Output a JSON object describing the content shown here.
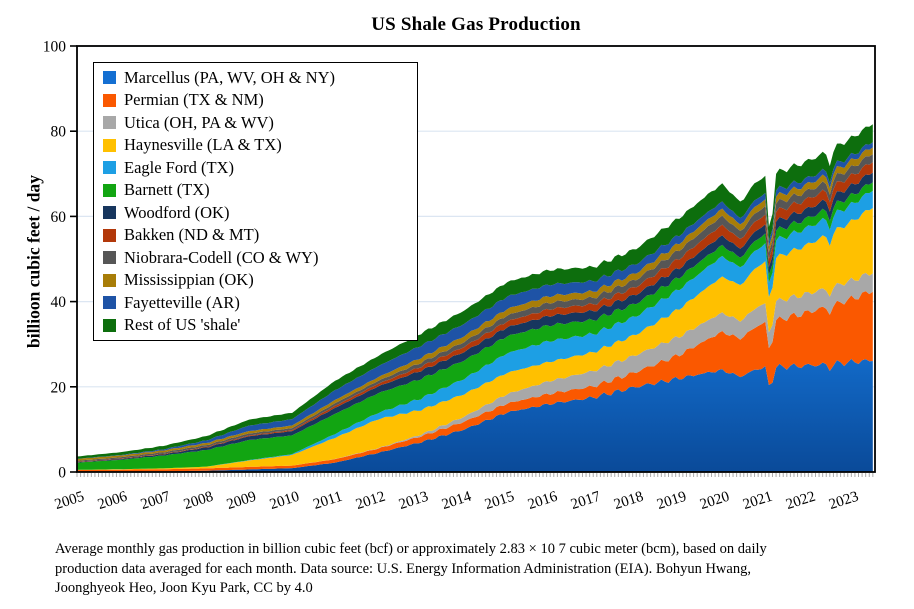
{
  "title": "US Shale Gas Production",
  "y_axis_title": "billioon cubic feet / day",
  "caption_lines": [
    "Average monthly gas production in billion cubic feet (bcf) or approximately 2.83 × 10 7 cubic meter (bcm), based on daily",
    "production data averaged for each month. Data source: U.S. Energy Information Administration (EIA). Bohyun Hwang,",
    "Joonghyeok Heo, Joon Kyu Park, CC by 4.0"
  ],
  "colors": {
    "grid": "#DCE6F2",
    "axis": "#000000",
    "minor_tick": "#ABABAB",
    "year_tick": "#555555"
  },
  "chart_data": {
    "type": "area",
    "stacked": true,
    "title": "US Shale Gas Production",
    "ylabel": "billioon cubic feet / day",
    "units": "billion cubic feet per day, monthly average",
    "grid": "horizontal light-blue lines at 20/40/60/80/100",
    "legend_position": "inside top-left",
    "ylim": [
      0,
      100
    ],
    "xlim": [
      2005,
      2023.55
    ],
    "y_ticks": [
      0,
      20,
      40,
      60,
      80,
      100
    ],
    "x_label_ticks": [
      "2005",
      "2006",
      "2007",
      "2008",
      "2009",
      "2010",
      "2011",
      "2012",
      "2013",
      "2014",
      "2015",
      "2016",
      "2017",
      "2018",
      "2019",
      "2020",
      "2021",
      "2022",
      "2023"
    ],
    "x_anchors": [
      2005,
      2006,
      2007,
      2008,
      2009,
      2010,
      2011,
      2012,
      2013,
      2014,
      2015,
      2016,
      2017,
      2018,
      2019,
      2020,
      2021,
      2022,
      2023,
      2023.55
    ],
    "series": [
      {
        "name": "Marcellus (PA, WV, OH & NY)",
        "color": "#146FD2",
        "gradient": [
          "#0A4A99",
          "#1576DA"
        ],
        "values": [
          0.05,
          0.1,
          0.15,
          0.3,
          0.6,
          0.9,
          2.2,
          4.5,
          7.0,
          10.0,
          14.0,
          16.0,
          17.5,
          20.0,
          22.0,
          24.0,
          24.5,
          25.0,
          25.8,
          26.3
        ]
      },
      {
        "name": "Permian (TX & NM)",
        "color": "#FA5800",
        "values": [
          0.4,
          0.45,
          0.5,
          0.55,
          0.6,
          0.6,
          0.8,
          1.0,
          1.4,
          1.8,
          2.1,
          2.4,
          2.6,
          3.5,
          5.5,
          9.0,
          10.5,
          12.5,
          14.8,
          16.5
        ]
      },
      {
        "name": "Utica (OH, PA & WV)",
        "color": "#A8A8A8",
        "values": [
          0,
          0,
          0,
          0,
          0,
          0,
          0.05,
          0.1,
          0.4,
          1.2,
          2.2,
          3.0,
          3.6,
          4.0,
          4.3,
          4.5,
          4.5,
          4.4,
          4.3,
          4.3
        ]
      },
      {
        "name": "Haynesville (LA & TX)",
        "color": "#FFC000",
        "values": [
          0.05,
          0.1,
          0.2,
          0.4,
          1.5,
          2.5,
          5.0,
          6.8,
          5.8,
          5.3,
          5.0,
          4.5,
          4.4,
          4.8,
          6.5,
          8.5,
          9.8,
          11.5,
          13.8,
          15.5
        ]
      },
      {
        "name": "Eagle Ford (TX)",
        "color": "#1D9FE4",
        "values": [
          0,
          0,
          0,
          0,
          0.1,
          0.2,
          0.9,
          1.5,
          2.7,
          3.6,
          4.6,
          4.9,
          4.3,
          4.3,
          4.6,
          4.8,
          4.1,
          4.0,
          4.0,
          4.0
        ]
      },
      {
        "name": "Barnett (TX)",
        "color": "#12A512",
        "values": [
          1.7,
          2.2,
          3.0,
          3.9,
          4.7,
          4.4,
          4.7,
          4.6,
          4.6,
          4.3,
          4.0,
          3.7,
          3.3,
          3.0,
          2.8,
          2.6,
          2.3,
          2.2,
          2.1,
          2.0
        ]
      },
      {
        "name": "Woodford (OK)",
        "color": "#17365E",
        "values": [
          0.1,
          0.2,
          0.3,
          0.6,
          0.9,
          1.0,
          1.4,
          1.6,
          1.9,
          2.0,
          2.1,
          2.2,
          2.1,
          2.1,
          2.2,
          2.3,
          2.2,
          2.2,
          2.3,
          2.3
        ]
      },
      {
        "name": "Bakken (ND & MT)",
        "color": "#B2380A",
        "values": [
          0.1,
          0.1,
          0.12,
          0.15,
          0.2,
          0.25,
          0.5,
          0.6,
          0.95,
          1.2,
          1.4,
          1.6,
          1.6,
          1.8,
          2.2,
          2.5,
          2.3,
          2.3,
          2.35,
          2.4
        ]
      },
      {
        "name": "Niobrara-Codell (CO & WY)",
        "color": "#565656",
        "values": [
          0.25,
          0.3,
          0.35,
          0.4,
          0.45,
          0.45,
          0.6,
          0.7,
          0.95,
          1.15,
          1.4,
          1.5,
          1.5,
          1.7,
          2.0,
          2.1,
          1.95,
          1.9,
          1.9,
          1.9
        ]
      },
      {
        "name": "Mississippian (OK)",
        "color": "#A87D08",
        "values": [
          0.4,
          0.42,
          0.45,
          0.5,
          0.55,
          0.6,
          0.75,
          0.85,
          1.15,
          1.35,
          1.5,
          1.55,
          1.5,
          1.55,
          1.65,
          1.7,
          1.6,
          1.6,
          1.6,
          1.6
        ]
      },
      {
        "name": "Fayetteville (AR)",
        "color": "#1E53A6",
        "values": [
          0.05,
          0.1,
          0.25,
          0.6,
          1.3,
          1.5,
          2.3,
          2.6,
          2.85,
          2.9,
          2.9,
          2.7,
          2.4,
          2.1,
          1.9,
          1.7,
          1.5,
          1.4,
          1.25,
          1.2
        ]
      },
      {
        "name": "Rest of US 'shale'",
        "color": "#0D6E0D",
        "values": [
          0.55,
          0.65,
          0.8,
          1.0,
          1.4,
          1.5,
          2.2,
          2.4,
          2.85,
          3.1,
          3.4,
          3.4,
          3.3,
          3.6,
          4.0,
          4.2,
          4.0,
          4.0,
          4.1,
          4.2
        ]
      }
    ],
    "dip_events": [
      {
        "label": "spring 2020 decline",
        "center": 2020.42,
        "depth": 0.07,
        "width": 0.28
      },
      {
        "label": "Feb 2021 winter storm",
        "center": 2021.12,
        "depth": 0.3,
        "width": 0.05
      },
      {
        "label": "mid 2022 dip",
        "center": 2022.5,
        "depth": 0.045,
        "width": 0.07
      }
    ]
  }
}
